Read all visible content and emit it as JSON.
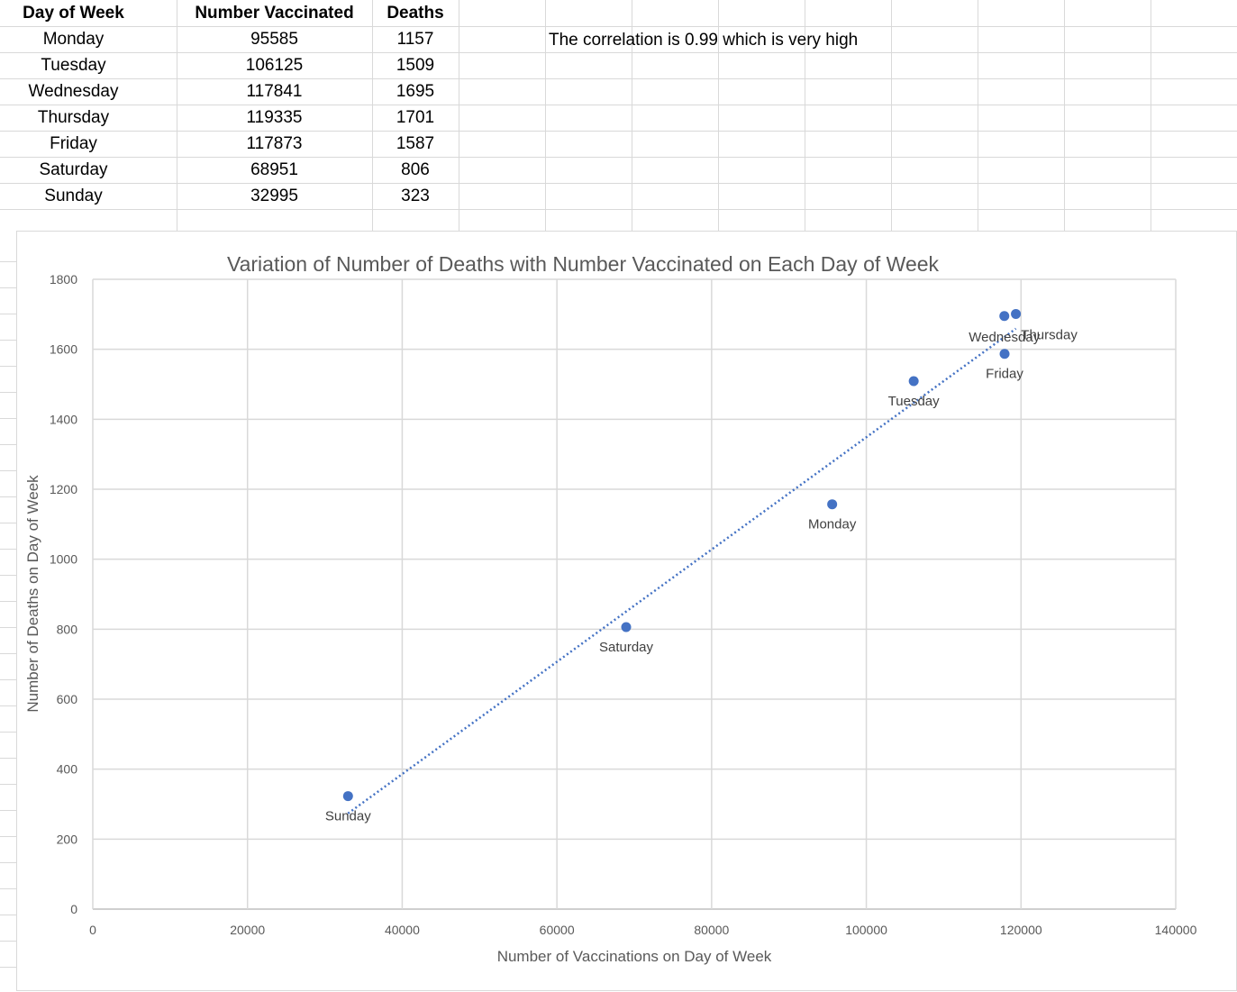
{
  "table": {
    "headers": [
      "Day of Week",
      "Number Vaccinated",
      "Deaths"
    ],
    "rows": [
      [
        "Monday",
        "95585",
        "1157"
      ],
      [
        "Tuesday",
        "106125",
        "1509"
      ],
      [
        "Wednesday",
        "117841",
        "1695"
      ],
      [
        "Thursday",
        "119335",
        "1701"
      ],
      [
        "Friday",
        "117873",
        "1587"
      ],
      [
        "Saturday",
        "68951",
        "806"
      ],
      [
        "Sunday",
        "32995",
        "323"
      ]
    ]
  },
  "note": "The correlation is 0.99 which is very high",
  "chart_data": {
    "type": "scatter",
    "title": "Variation of Number of Deaths with Number Vaccinated on Each Day of Week",
    "xlabel": "Number of Vaccinations on Day of Week",
    "ylabel": "Number of Deaths on Day of Week",
    "xlim": [
      0,
      140000
    ],
    "ylim": [
      0,
      1800
    ],
    "xticks": [
      0,
      20000,
      40000,
      60000,
      80000,
      100000,
      120000,
      140000
    ],
    "yticks": [
      0,
      200,
      400,
      600,
      800,
      1000,
      1200,
      1400,
      1600,
      1800
    ],
    "grid": true,
    "trendline": "linear",
    "marker_color": "#4472C4",
    "points": [
      {
        "label": "Monday",
        "x": 95585,
        "y": 1157
      },
      {
        "label": "Tuesday",
        "x": 106125,
        "y": 1509
      },
      {
        "label": "Wednesday",
        "x": 117841,
        "y": 1695
      },
      {
        "label": "Thursday",
        "x": 119335,
        "y": 1701
      },
      {
        "label": "Friday",
        "x": 117873,
        "y": 1587
      },
      {
        "label": "Saturday",
        "x": 68951,
        "y": 806
      },
      {
        "label": "Sunday",
        "x": 32995,
        "y": 323
      }
    ]
  }
}
